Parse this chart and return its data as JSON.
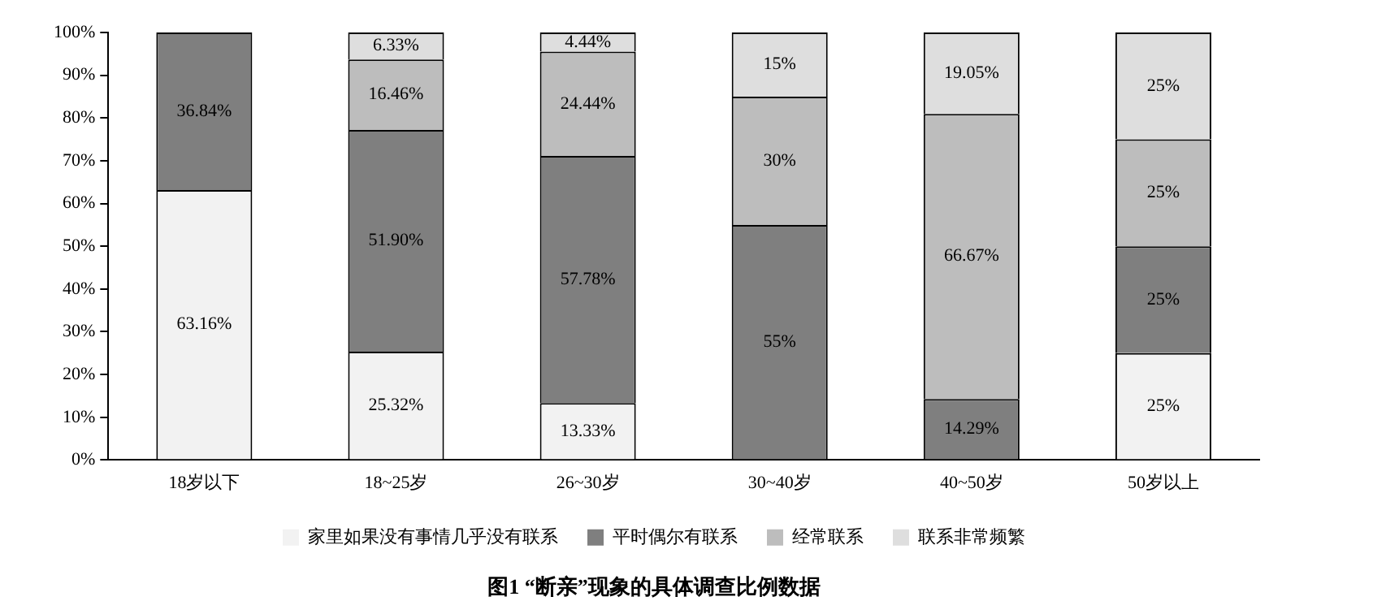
{
  "chart_data": {
    "type": "bar",
    "stacked": true,
    "title": "图1 “断亲”现象的具体调查比例数据",
    "categories": [
      "18岁以下",
      "18~25岁",
      "26~30岁",
      "30~40岁",
      "40~50岁",
      "50岁以上"
    ],
    "series": [
      {
        "name": "家里如果没有事情几乎没有联系",
        "color": "#f2f2f2",
        "values": [
          63.16,
          25.32,
          13.33,
          null,
          null,
          25
        ],
        "value_labels": [
          "63.16%",
          "25.32%",
          "13.33%",
          null,
          null,
          "25%"
        ]
      },
      {
        "name": "平时偶尔有联系",
        "color": "#7f7f7f",
        "values": [
          36.84,
          51.9,
          57.78,
          55,
          14.29,
          25
        ],
        "value_labels": [
          "36.84%",
          "51.90%",
          "57.78%",
          "55%",
          "14.29%",
          "25%"
        ]
      },
      {
        "name": "经常联系",
        "color": "#bdbdbd",
        "values": [
          null,
          16.46,
          24.44,
          30,
          66.67,
          25
        ],
        "value_labels": [
          null,
          "16.46%",
          "24.44%",
          "30%",
          "66.67%",
          "25%"
        ]
      },
      {
        "name": "联系非常频繁",
        "color": "#dedede",
        "values": [
          null,
          6.33,
          4.44,
          15,
          19.05,
          25
        ],
        "value_labels": [
          null,
          "6.33%",
          "4.44%",
          "15%",
          "19.05%",
          "25%"
        ]
      }
    ],
    "ylim": [
      0,
      100
    ],
    "yticks": [
      {
        "value": 0,
        "label": "0%"
      },
      {
        "value": 10,
        "label": "10%"
      },
      {
        "value": 20,
        "label": "20%"
      },
      {
        "value": 30,
        "label": "30%"
      },
      {
        "value": 40,
        "label": "40%"
      },
      {
        "value": 50,
        "label": "50%"
      },
      {
        "value": 60,
        "label": "60%"
      },
      {
        "value": 70,
        "label": "70%"
      },
      {
        "value": 80,
        "label": "80%"
      },
      {
        "value": 90,
        "label": "90%"
      },
      {
        "value": 100,
        "label": "100%"
      }
    ],
    "grid": false,
    "legend": "bottom"
  }
}
